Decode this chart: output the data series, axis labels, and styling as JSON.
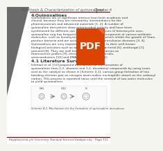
{
  "header_left": "Synthesis & Characterization of quinoxalines",
  "header_right": "Chapter-4",
  "header_line_color": "#8B0000",
  "section_title": "4.Quinoxalines",
  "body_text_lines": [
    "Quinoxalines are of significant interest from both academic and",
    "clinical, because they are noteworthy intermediates for the",
    "pharmaceuticals and advanced materials [1, 2]. A number of",
    "quinoxaline derivatives show antimicrobial activity and have been",
    "synthesized for different use. Among various classes of heterocyclic uses,",
    "quinoxaline ring has frequently been used as a component of various antibiotic",
    "molecules, such as levomycin and echinomycin, which inhibit the growth of Gram-",
    "positive bacteria and are active against various transfusion diseases [3, 4].",
    "Quinoxalines are very important compounds due to their well-known",
    "biological activities such as anticancer [5], antibacterial [6], antifungal [7],",
    "antiviral [8]. They are well known for their applications as",
    "fluorescence probes [9], electroluminescent materials,",
    "semiconductors [10] and DNA cleaving agent [11]."
  ],
  "section2_title": "4.1 Literature Survey",
  "survey_text": [
    "Ishmael et al. [12] proposed mechanism for the formation of",
    "quinoxalines from 1,2- diamine and 1,2- dicarbonyl compounds by using Lewis",
    "acid as the catalyst as shown in [Scheme 4.1]. various group formation of two",
    "bonding electron pair on nitrogen atom makes nucleophilic attack on the carbonyl",
    "carbon. This process is repeated twice until the removal of two water molecules",
    "to yield quinoxalines"
  ],
  "footer_left": "Rayalaseema yhi University, Nandyal-Kurnool-Kadapa-ndy",
  "footer_right": "Page 111",
  "footer_line_color": "#8B0000",
  "scheme_caption": "Scheme 4.1: Mechanism for the formation of quinoxaline derivatives",
  "background_color": "#f5f5f0",
  "text_color": "#333333",
  "header_font_size": 3.8,
  "body_font_size": 3.2,
  "title_font_size": 4.5,
  "pdf_watermark_color": "#cc4400",
  "left_triangle_color": "#555555",
  "left_text_color": "#888888"
}
